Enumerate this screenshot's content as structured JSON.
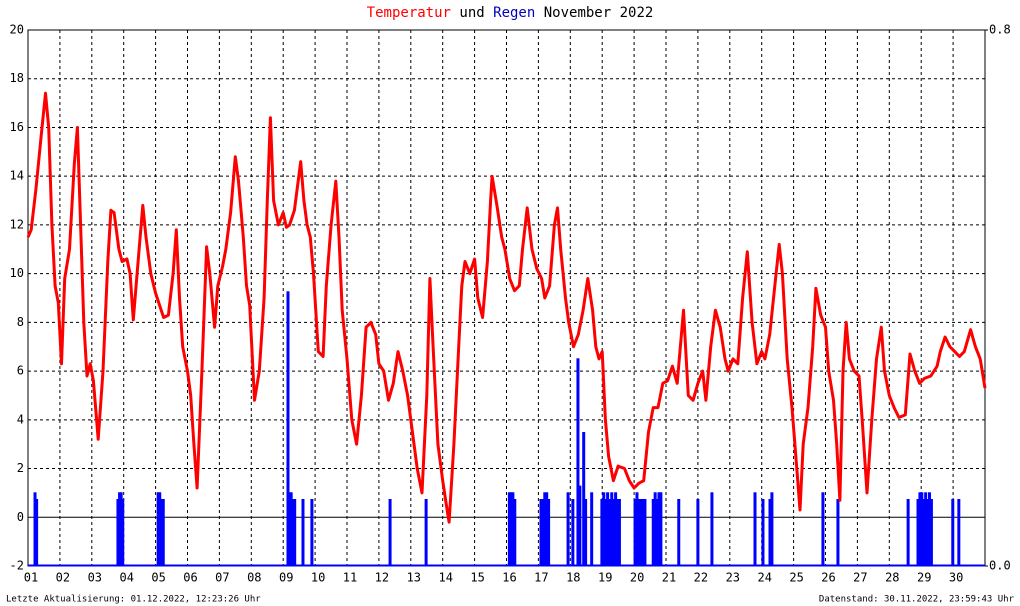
{
  "chart_data": {
    "type": "line",
    "title": "November 2022",
    "title_and": "und",
    "footer_left": "Letzte Aktualisierung: 01.12.2022, 12:23:26 Uhr",
    "footer_right": "Datenstand: 30.11.2022, 23:59:43 Uhr",
    "xlim": [
      1,
      31
    ],
    "xticks": [
      {
        "value": 1,
        "label": "01"
      },
      {
        "value": 2,
        "label": "02"
      },
      {
        "value": 3,
        "label": "03"
      },
      {
        "value": 4,
        "label": "04"
      },
      {
        "value": 5,
        "label": "05"
      },
      {
        "value": 6,
        "label": "06"
      },
      {
        "value": 7,
        "label": "07"
      },
      {
        "value": 8,
        "label": "08"
      },
      {
        "value": 9,
        "label": "09"
      },
      10,
      11,
      12,
      13,
      14,
      15,
      16,
      17,
      18,
      19,
      20,
      21,
      22,
      23,
      24,
      25,
      26,
      27,
      28,
      29,
      30
    ],
    "ylim": [
      -2,
      20
    ],
    "yticks": [
      -2,
      0,
      2,
      4,
      6,
      8,
      10,
      12,
      14,
      16,
      18,
      20
    ],
    "y2lim": [
      0,
      0.8
    ],
    "y2ticks": [
      {
        "value": 0,
        "label": "0.0"
      },
      {
        "value": 0.8,
        "label": "0.8"
      }
    ],
    "grid": true,
    "series": [
      {
        "name": "Temperatur",
        "color": "#ff0000",
        "type": "line",
        "x": [
          1.0,
          1.1,
          1.25,
          1.4,
          1.55,
          1.65,
          1.75,
          1.85,
          1.95,
          2.05,
          2.15,
          2.3,
          2.45,
          2.55,
          2.65,
          2.75,
          2.85,
          2.95,
          3.05,
          3.2,
          3.35,
          3.5,
          3.6,
          3.7,
          3.85,
          3.95,
          4.1,
          4.2,
          4.3,
          4.45,
          4.6,
          4.7,
          4.85,
          5.0,
          5.1,
          5.25,
          5.4,
          5.55,
          5.65,
          5.75,
          5.85,
          6.0,
          6.1,
          6.2,
          6.3,
          6.45,
          6.6,
          6.7,
          6.85,
          6.95,
          7.1,
          7.2,
          7.35,
          7.5,
          7.6,
          7.75,
          7.85,
          7.95,
          8.1,
          8.25,
          8.4,
          8.5,
          8.6,
          8.7,
          8.85,
          9.0,
          9.1,
          9.2,
          9.35,
          9.55,
          9.65,
          9.75,
          9.85,
          9.95,
          10.1,
          10.25,
          10.35,
          10.5,
          10.65,
          10.75,
          10.85,
          11.0,
          11.15,
          11.3,
          11.45,
          11.6,
          11.75,
          11.9,
          12.0,
          12.15,
          12.3,
          12.45,
          12.6,
          12.75,
          12.9,
          13.05,
          13.2,
          13.35,
          13.5,
          13.6,
          13.7,
          13.85,
          14.0,
          14.15,
          14.2,
          14.35,
          14.5,
          14.6,
          14.7,
          14.85,
          15.0,
          15.1,
          15.25,
          15.4,
          15.5,
          15.55,
          15.7,
          15.85,
          15.95,
          16.1,
          16.25,
          16.4,
          16.5,
          16.65,
          16.8,
          16.95,
          17.1,
          17.2,
          17.35,
          17.5,
          17.6,
          17.7,
          17.85,
          17.95,
          18.1,
          18.25,
          18.4,
          18.55,
          18.7,
          18.8,
          18.9,
          19.0,
          19.1,
          19.2,
          19.35,
          19.5,
          19.7,
          19.85,
          20.0,
          20.15,
          20.3,
          20.45,
          20.6,
          20.75,
          20.9,
          21.05,
          21.2,
          21.35,
          21.55,
          21.7,
          21.85,
          22.0,
          22.15,
          22.25,
          22.4,
          22.55,
          22.7,
          22.85,
          22.95,
          23.1,
          23.25,
          23.4,
          23.55,
          23.7,
          23.85,
          24.0,
          24.1,
          24.25,
          24.45,
          24.55,
          24.65,
          24.8,
          24.95,
          25.1,
          25.2,
          25.3,
          25.45,
          25.6,
          25.7,
          25.85,
          26.0,
          26.1,
          26.25,
          26.35,
          26.45,
          26.55,
          26.65,
          26.75,
          26.9,
          27.05,
          27.15,
          27.3,
          27.45,
          27.6,
          27.75,
          27.85,
          28.0,
          28.15,
          28.3,
          28.5,
          28.65,
          28.8,
          28.95,
          29.1,
          29.3,
          29.5,
          29.6,
          29.75,
          29.9,
          30.05,
          30.2,
          30.35,
          30.55,
          30.7,
          30.85,
          31.0
        ],
        "values": [
          11.5,
          11.8,
          13.5,
          15.5,
          17.4,
          16,
          12,
          9.5,
          8.8,
          6.3,
          9.8,
          11,
          14.5,
          16,
          12,
          8,
          5.8,
          6.3,
          5.6,
          3.2,
          6,
          10.5,
          12.6,
          12.5,
          11,
          10.5,
          10.6,
          10,
          8.1,
          10.5,
          12.8,
          11.5,
          10,
          9.2,
          8.8,
          8.2,
          8.3,
          10,
          11.8,
          9,
          7,
          6,
          5,
          3,
          1.2,
          6,
          11.1,
          10,
          7.8,
          9.5,
          10.3,
          11,
          12.5,
          14.8,
          13.8,
          11.5,
          9.5,
          8.7,
          4.8,
          6,
          9,
          13,
          16.4,
          13,
          12,
          12.5,
          11.9,
          12,
          12.6,
          14.6,
          13,
          12,
          11.5,
          10,
          6.8,
          6.6,
          9.5,
          12,
          13.8,
          11.5,
          8.5,
          6.5,
          4,
          3,
          5,
          7.8,
          8,
          7.5,
          6.3,
          6,
          4.8,
          5.5,
          6.8,
          6,
          5,
          3.5,
          2,
          1,
          5,
          9.8,
          7,
          3,
          1.5,
          0.2,
          -0.2,
          3,
          7,
          9.5,
          10.5,
          10,
          10.6,
          9,
          8.2,
          10.5,
          13,
          14,
          12.8,
          11.5,
          11,
          9.8,
          9.3,
          9.5,
          11,
          12.7,
          11,
          10.2,
          9.8,
          9,
          9.5,
          12,
          12.7,
          11,
          9,
          8,
          7,
          7.5,
          8.5,
          9.8,
          8.5,
          7,
          6.5,
          6.8,
          4,
          2.5,
          1.5,
          2.1,
          2,
          1.5,
          1.2,
          1.4,
          1.5,
          3.5,
          4.5,
          4.5,
          5.5,
          5.6,
          6.2,
          5.5,
          8.5,
          5,
          4.8,
          5.5,
          6,
          4.8,
          7,
          8.5,
          7.8,
          6.5,
          6,
          6.5,
          6.3,
          9,
          10.9,
          8,
          6.3,
          6.8,
          6.5,
          7.5,
          10,
          11.2,
          10,
          6.5,
          4.5,
          2,
          0.3,
          3,
          4.5,
          7,
          9.4,
          8.3,
          7.8,
          6,
          4.8,
          3,
          0.7,
          6,
          8,
          6.5,
          6,
          5.8,
          4,
          1,
          4,
          6.5,
          7.8,
          6,
          5,
          4.5,
          4.1,
          4.2,
          6.7,
          6,
          5.5,
          5.7,
          5.8,
          6.2,
          6.8,
          7.4,
          7,
          6.8,
          6.6,
          6.8,
          7.7,
          7,
          6.5,
          5.3
        ]
      },
      {
        "name": "Regen",
        "color": "#0000ff",
        "type": "bar",
        "axis": "y2",
        "x": [
          1.22,
          1.27,
          3.82,
          3.87,
          3.92,
          3.97,
          5.08,
          5.13,
          5.18,
          5.24,
          9.15,
          9.2,
          9.25,
          9.3,
          9.36,
          9.62,
          9.9,
          12.35,
          13.48,
          16.09,
          16.14,
          16.2,
          16.26,
          17.08,
          17.14,
          17.2,
          17.26,
          17.32,
          17.93,
          18.08,
          18.24,
          18.3,
          18.42,
          18.48,
          18.67,
          18.99,
          19.05,
          19.11,
          19.17,
          19.24,
          19.3,
          19.36,
          19.42,
          19.48,
          19.54,
          20.03,
          20.09,
          20.15,
          20.22,
          20.28,
          20.34,
          20.6,
          20.66,
          20.72,
          20.78,
          20.84,
          21.4,
          22.0,
          22.44,
          23.79,
          24.04,
          24.26,
          24.32,
          25.92,
          26.39,
          28.59,
          28.9,
          28.96,
          29.02,
          29.08,
          29.14,
          29.2,
          29.26,
          29.32,
          29.99,
          30.18
        ],
        "values": [
          0.11,
          0.1,
          0.1,
          0.11,
          0.11,
          0.1,
          0.11,
          0.11,
          0.1,
          0.1,
          0.41,
          0.11,
          0.11,
          0.1,
          0.1,
          0.1,
          0.1,
          0.1,
          0.1,
          0.11,
          0.11,
          0.11,
          0.1,
          0.1,
          0.1,
          0.11,
          0.11,
          0.1,
          0.11,
          0.1,
          0.31,
          0.12,
          0.2,
          0.1,
          0.11,
          0.1,
          0.11,
          0.1,
          0.11,
          0.1,
          0.11,
          0.1,
          0.11,
          0.1,
          0.1,
          0.1,
          0.11,
          0.1,
          0.1,
          0.1,
          0.1,
          0.1,
          0.11,
          0.1,
          0.11,
          0.11,
          0.1,
          0.1,
          0.11,
          0.11,
          0.1,
          0.1,
          0.11,
          0.11,
          0.1,
          0.1,
          0.1,
          0.11,
          0.11,
          0.1,
          0.11,
          0.1,
          0.11,
          0.1,
          0.1,
          0.1
        ]
      }
    ]
  }
}
